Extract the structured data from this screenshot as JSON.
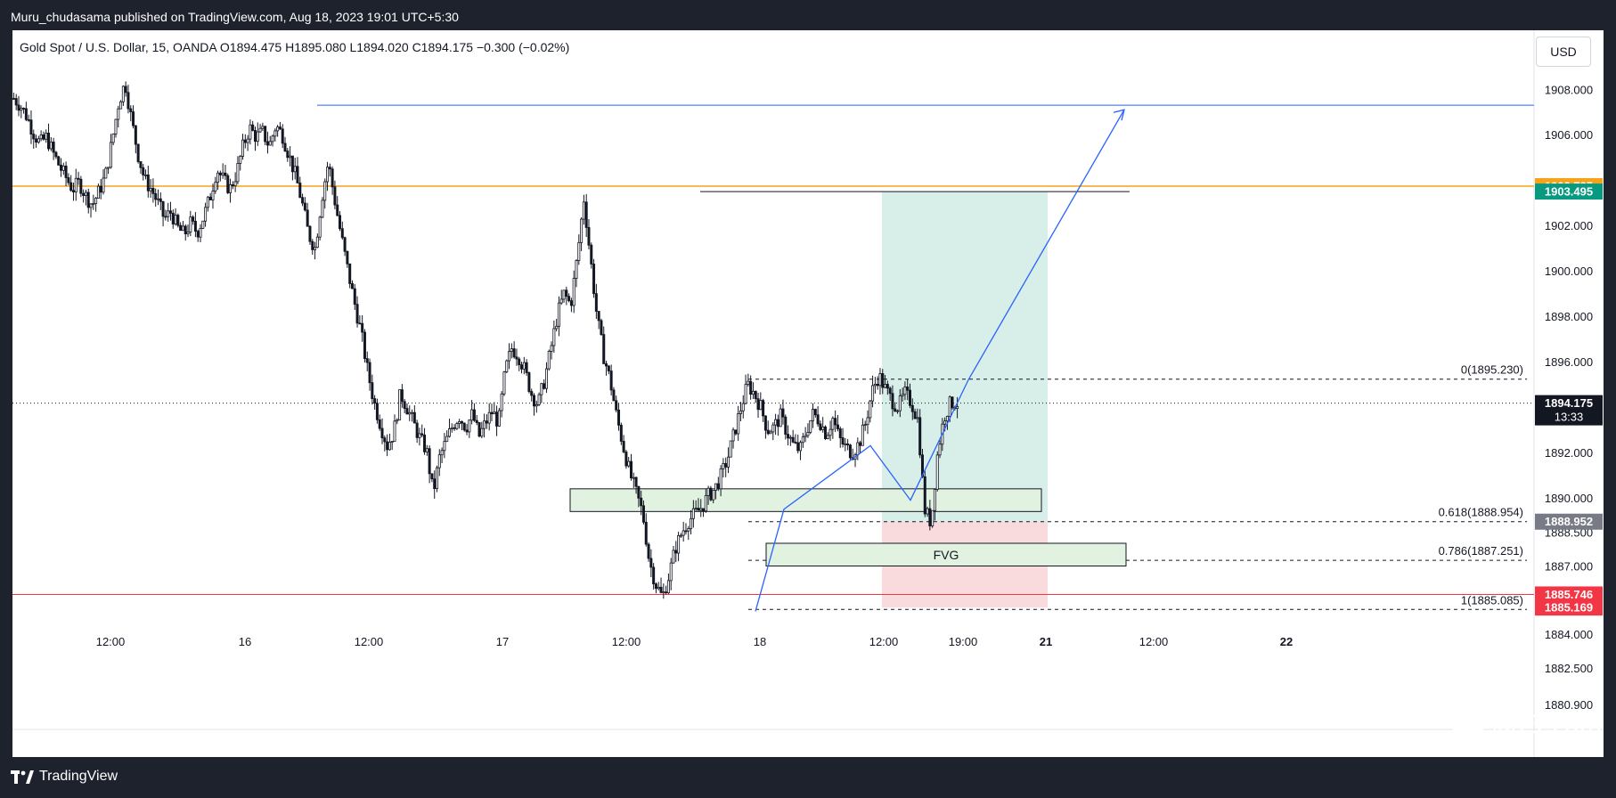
{
  "header": {
    "publisher_text": "Muru_chudasama published on TradingView.com, Aug 18, 2023 19:01 UTC+5:30"
  },
  "legend": {
    "symbol": "Gold Spot / U.S. Dollar, 15, OANDA",
    "open": "O1894.475",
    "high": "H1895.080",
    "low": "L1894.020",
    "close": "C1894.175",
    "change": "−0.300 (−0.02%)"
  },
  "currency_button": "USD",
  "price_axis": {
    "ticks": [
      "1908.000",
      "1906.000",
      "1902.000",
      "1900.000",
      "1898.000",
      "1896.000",
      "1892.000",
      "1890.000",
      "1888.500",
      "1887.000",
      "1884.000",
      "1882.500",
      "1880.900"
    ]
  },
  "price_labels": {
    "orange_line": "1903.735",
    "target": "1903.495",
    "current_price": "1894.175",
    "countdown": "13:33",
    "entry": "1888.952",
    "red_line": "1885.746",
    "stop": "1885.169"
  },
  "time_axis": {
    "ticks": [
      "12:00",
      "16",
      "12:00",
      "17",
      "12:00",
      "18",
      "12:00",
      "19:00",
      "21",
      "12:00",
      "22"
    ]
  },
  "fib_labels": {
    "level_0": "0(1895.230)",
    "level_618": "0.618(1888.954)",
    "level_786": "0.786(1887.251)",
    "level_1": "1(1885.085)"
  },
  "annotations": {
    "fvg_label": "FVG"
  },
  "footer": {
    "brand": "TradingView",
    "watermark": "@Eezam"
  },
  "colors": {
    "background_dark": "#1e222d",
    "chart_bg": "#ffffff",
    "candle_color": "#131722",
    "blue_line": "#2962ff",
    "orange_line": "#f7a21b",
    "red_line": "#f23645",
    "target_badge": "#089981",
    "zone_green": "#d4ede7",
    "zone_red": "#f8d7da",
    "fvg_fill": "#e1f2e1",
    "entry_badge": "#787b86"
  },
  "chart_data": {
    "type": "candlestick",
    "symbol": "Gold Spot / U.S. Dollar",
    "interval": "15",
    "ylim": [
      1879.8,
      1910.6
    ],
    "horizontal_lines": [
      {
        "price": 1907.3,
        "color": "#2962ff"
      },
      {
        "price": 1903.735,
        "color": "#f7a21b"
      },
      {
        "price": 1885.746,
        "color": "#f23645"
      }
    ],
    "fibonacci": [
      {
        "level": "0",
        "price": 1895.23
      },
      {
        "level": "0.618",
        "price": 1888.954
      },
      {
        "level": "0.786",
        "price": 1887.251
      },
      {
        "level": "1",
        "price": 1885.085
      }
    ],
    "position": {
      "entry": 1888.952,
      "target": 1903.495,
      "stop": 1885.169
    },
    "close_path": [
      1907.6,
      1907.3,
      1906.8,
      1906.1,
      1905.6,
      1905.9,
      1905.2,
      1904.6,
      1904.1,
      1903.6,
      1903.9,
      1903.3,
      1902.9,
      1903.5,
      1904.2,
      1905.7,
      1907.4,
      1908.3,
      1906.6,
      1905.1,
      1904.0,
      1903.6,
      1903.0,
      1902.3,
      1902.6,
      1901.9,
      1901.6,
      1902.1,
      1901.7,
      1902.4,
      1903.3,
      1904.5,
      1904.0,
      1903.6,
      1904.3,
      1905.5,
      1906.3,
      1905.9,
      1906.1,
      1905.5,
      1906.4,
      1906.0,
      1905.1,
      1904.2,
      1903.0,
      1901.6,
      1901.0,
      1903.2,
      1904.8,
      1903.1,
      1901.5,
      1900.0,
      1898.6,
      1897.3,
      1895.6,
      1894.2,
      1893.2,
      1892.3,
      1892.9,
      1894.6,
      1894.0,
      1893.3,
      1892.6,
      1892.1,
      1890.2,
      1891.8,
      1892.5,
      1893.2,
      1893.6,
      1893.1,
      1893.7,
      1892.7,
      1893.3,
      1893.8,
      1893.3,
      1895.6,
      1896.6,
      1896.3,
      1895.6,
      1894.6,
      1894.1,
      1895.2,
      1896.6,
      1898.1,
      1899.0,
      1898.5,
      1900.6,
      1903.2,
      1900.6,
      1898.0,
      1896.3,
      1895.2,
      1893.6,
      1892.3,
      1891.1,
      1890.2,
      1889.3,
      1887.2,
      1886.2,
      1885.6,
      1886.6,
      1887.8,
      1888.5,
      1889.0,
      1889.3,
      1889.6,
      1890.1,
      1890.4,
      1891.0,
      1891.8,
      1892.9,
      1894.0,
      1895.0,
      1894.6,
      1894.0,
      1893.0,
      1893.1,
      1893.6,
      1892.9,
      1892.3,
      1892.1,
      1893.0,
      1893.7,
      1893.4,
      1892.8,
      1893.5,
      1892.6,
      1892.2,
      1892.0,
      1892.4,
      1893.3,
      1894.7,
      1895.4,
      1894.8,
      1894.3,
      1894.0,
      1894.6,
      1894.2,
      1893.4,
      1889.5,
      1888.9,
      1892.0,
      1893.6,
      1894.2,
      1894.175
    ]
  }
}
